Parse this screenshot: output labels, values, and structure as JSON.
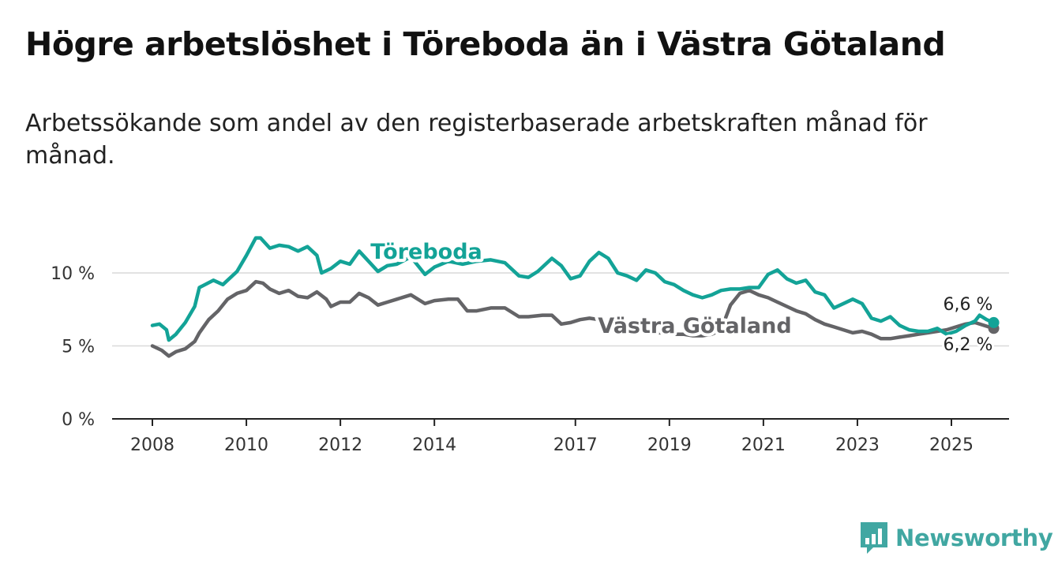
{
  "title": "Högre arbetslöshet i Töreboda än i Västra Götaland",
  "subtitle": "Arbetssökande som andel av den registerbaserade arbetskraften månad för månad.",
  "brand": {
    "name": "Newsworthy",
    "icon": "bar-chart-flag-icon",
    "color": "#41a7a2"
  },
  "chart_data": {
    "type": "line",
    "x_unit": "year",
    "xlim": [
      2007.5,
      2026.6
    ],
    "ylim": [
      0,
      12.5
    ],
    "y_ticks": [
      {
        "value": 0,
        "label": "0 %"
      },
      {
        "value": 5,
        "label": "5 %"
      },
      {
        "value": 10,
        "label": "10 %"
      }
    ],
    "x_ticks": [
      {
        "value": 2008,
        "label": "2008"
      },
      {
        "value": 2010,
        "label": "2010"
      },
      {
        "value": 2012,
        "label": "2012"
      },
      {
        "value": 2014,
        "label": "2014"
      },
      {
        "value": 2017,
        "label": "2017"
      },
      {
        "value": 2019,
        "label": "2019"
      },
      {
        "value": 2021,
        "label": "2021"
      },
      {
        "value": 2023,
        "label": "2023"
      },
      {
        "value": 2025,
        "label": "2025"
      }
    ],
    "grid": "horizontal",
    "legend": "inline labels",
    "series": [
      {
        "name": "Töreboda",
        "color": "#13a397",
        "end_label": "6,6 %",
        "points": [
          [
            2008,
            6.4
          ],
          [
            2008.15,
            6.5
          ],
          [
            2008.3,
            6.1
          ],
          [
            2008.35,
            5.4
          ],
          [
            2008.5,
            5.8
          ],
          [
            2008.7,
            6.6
          ],
          [
            2008.9,
            7.7
          ],
          [
            2009.0,
            9.0
          ],
          [
            2009.3,
            9.5
          ],
          [
            2009.5,
            9.2
          ],
          [
            2009.8,
            10.1
          ],
          [
            2010.0,
            11.2
          ],
          [
            2010.2,
            12.4
          ],
          [
            2010.3,
            12.4
          ],
          [
            2010.5,
            11.7
          ],
          [
            2010.7,
            11.9
          ],
          [
            2010.9,
            11.8
          ],
          [
            2011.1,
            11.5
          ],
          [
            2011.3,
            11.8
          ],
          [
            2011.5,
            11.2
          ],
          [
            2011.6,
            10.0
          ],
          [
            2011.8,
            10.3
          ],
          [
            2012.0,
            10.8
          ],
          [
            2012.2,
            10.6
          ],
          [
            2012.4,
            11.5
          ],
          [
            2012.6,
            10.8
          ],
          [
            2012.8,
            10.1
          ],
          [
            2013.0,
            10.5
          ],
          [
            2013.2,
            10.6
          ],
          [
            2013.5,
            11.1
          ],
          [
            2013.8,
            9.9
          ],
          [
            2014.0,
            10.4
          ],
          [
            2014.3,
            10.8
          ],
          [
            2014.6,
            10.6
          ],
          [
            2014.9,
            10.8
          ],
          [
            2015.2,
            10.9
          ],
          [
            2015.5,
            10.7
          ],
          [
            2015.8,
            9.8
          ],
          [
            2016.0,
            9.7
          ],
          [
            2016.2,
            10.1
          ],
          [
            2016.5,
            11.0
          ],
          [
            2016.7,
            10.5
          ],
          [
            2016.9,
            9.6
          ],
          [
            2017.1,
            9.8
          ],
          [
            2017.3,
            10.8
          ],
          [
            2017.5,
            11.4
          ],
          [
            2017.7,
            11.0
          ],
          [
            2017.9,
            10.0
          ],
          [
            2018.1,
            9.8
          ],
          [
            2018.3,
            9.5
          ],
          [
            2018.5,
            10.2
          ],
          [
            2018.7,
            10.0
          ],
          [
            2018.9,
            9.4
          ],
          [
            2019.1,
            9.2
          ],
          [
            2019.3,
            8.8
          ],
          [
            2019.5,
            8.5
          ],
          [
            2019.7,
            8.3
          ],
          [
            2019.9,
            8.5
          ],
          [
            2020.1,
            8.8
          ],
          [
            2020.3,
            8.9
          ],
          [
            2020.5,
            8.9
          ],
          [
            2020.7,
            9.0
          ],
          [
            2020.9,
            9.0
          ],
          [
            2021.1,
            9.9
          ],
          [
            2021.3,
            10.2
          ],
          [
            2021.5,
            9.6
          ],
          [
            2021.7,
            9.3
          ],
          [
            2021.9,
            9.5
          ],
          [
            2022.1,
            8.7
          ],
          [
            2022.3,
            8.5
          ],
          [
            2022.5,
            7.6
          ],
          [
            2022.7,
            7.9
          ],
          [
            2022.9,
            8.2
          ],
          [
            2023.1,
            7.9
          ],
          [
            2023.3,
            6.9
          ],
          [
            2023.5,
            6.7
          ],
          [
            2023.7,
            7.0
          ],
          [
            2023.9,
            6.4
          ],
          [
            2024.1,
            6.1
          ],
          [
            2024.3,
            6.0
          ],
          [
            2024.5,
            6.0
          ],
          [
            2024.7,
            6.2
          ],
          [
            2024.9,
            5.8
          ],
          [
            2025.1,
            6.0
          ],
          [
            2025.3,
            6.4
          ],
          [
            2025.5,
            6.7
          ],
          [
            2025.6,
            7.1
          ],
          [
            2025.75,
            6.8
          ],
          [
            2025.9,
            6.6
          ]
        ]
      },
      {
        "name": "Västra Götaland",
        "color": "#646467",
        "end_label": "6,2 %",
        "points": [
          [
            2008,
            5.0
          ],
          [
            2008.2,
            4.7
          ],
          [
            2008.35,
            4.3
          ],
          [
            2008.5,
            4.6
          ],
          [
            2008.7,
            4.8
          ],
          [
            2008.9,
            5.3
          ],
          [
            2009.0,
            5.9
          ],
          [
            2009.2,
            6.8
          ],
          [
            2009.4,
            7.4
          ],
          [
            2009.6,
            8.2
          ],
          [
            2009.8,
            8.6
          ],
          [
            2010.0,
            8.8
          ],
          [
            2010.2,
            9.4
          ],
          [
            2010.35,
            9.3
          ],
          [
            2010.5,
            8.9
          ],
          [
            2010.7,
            8.6
          ],
          [
            2010.9,
            8.8
          ],
          [
            2011.1,
            8.4
          ],
          [
            2011.3,
            8.3
          ],
          [
            2011.5,
            8.7
          ],
          [
            2011.7,
            8.2
          ],
          [
            2011.8,
            7.7
          ],
          [
            2012.0,
            8.0
          ],
          [
            2012.2,
            8.0
          ],
          [
            2012.4,
            8.6
          ],
          [
            2012.6,
            8.3
          ],
          [
            2012.8,
            7.8
          ],
          [
            2013.0,
            8.0
          ],
          [
            2013.2,
            8.2
          ],
          [
            2013.5,
            8.5
          ],
          [
            2013.8,
            7.9
          ],
          [
            2014.0,
            8.1
          ],
          [
            2014.3,
            8.2
          ],
          [
            2014.5,
            8.2
          ],
          [
            2014.7,
            7.4
          ],
          [
            2014.9,
            7.4
          ],
          [
            2015.2,
            7.6
          ],
          [
            2015.5,
            7.6
          ],
          [
            2015.8,
            7.0
          ],
          [
            2016.0,
            7.0
          ],
          [
            2016.3,
            7.1
          ],
          [
            2016.5,
            7.1
          ],
          [
            2016.7,
            6.5
          ],
          [
            2016.9,
            6.6
          ],
          [
            2017.1,
            6.8
          ],
          [
            2017.3,
            6.9
          ],
          [
            2017.5,
            6.8
          ],
          [
            2017.7,
            6.4
          ],
          [
            2017.9,
            6.2
          ],
          [
            2018.1,
            6.3
          ],
          [
            2018.3,
            6.3
          ],
          [
            2018.5,
            6.1
          ],
          [
            2018.7,
            5.9
          ],
          [
            2018.9,
            5.9
          ],
          [
            2019.1,
            5.8
          ],
          [
            2019.3,
            5.8
          ],
          [
            2019.5,
            5.7
          ],
          [
            2019.7,
            5.7
          ],
          [
            2019.9,
            5.8
          ],
          [
            2020.1,
            6.1
          ],
          [
            2020.3,
            7.8
          ],
          [
            2020.5,
            8.6
          ],
          [
            2020.7,
            8.8
          ],
          [
            2020.9,
            8.5
          ],
          [
            2021.1,
            8.3
          ],
          [
            2021.3,
            8.0
          ],
          [
            2021.5,
            7.7
          ],
          [
            2021.7,
            7.4
          ],
          [
            2021.9,
            7.2
          ],
          [
            2022.1,
            6.8
          ],
          [
            2022.3,
            6.5
          ],
          [
            2022.5,
            6.3
          ],
          [
            2022.7,
            6.1
          ],
          [
            2022.9,
            5.9
          ],
          [
            2023.1,
            6.0
          ],
          [
            2023.3,
            5.8
          ],
          [
            2023.5,
            5.5
          ],
          [
            2023.7,
            5.5
          ],
          [
            2023.9,
            5.6
          ],
          [
            2024.1,
            5.7
          ],
          [
            2024.3,
            5.8
          ],
          [
            2024.5,
            5.9
          ],
          [
            2024.7,
            6.0
          ],
          [
            2024.9,
            6.1
          ],
          [
            2025.1,
            6.3
          ],
          [
            2025.3,
            6.5
          ],
          [
            2025.5,
            6.6
          ],
          [
            2025.7,
            6.4
          ],
          [
            2025.9,
            6.2
          ]
        ]
      }
    ]
  }
}
